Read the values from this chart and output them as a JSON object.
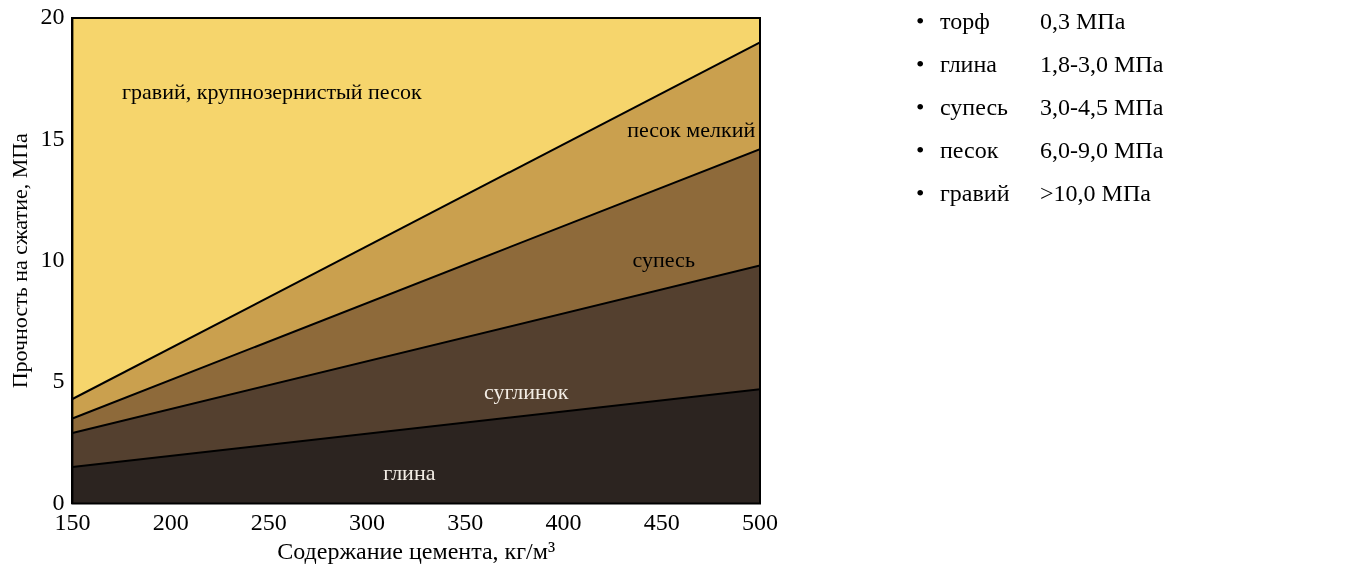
{
  "chart_data": {
    "type": "area",
    "xlabel": "Содержание цемента, кг/м³",
    "ylabel": "Прочность на сжатие, МПа",
    "x": [
      150,
      500
    ],
    "series": [
      {
        "name": "глина",
        "color": "#2c2420",
        "values": [
          1.5,
          4.7
        ]
      },
      {
        "name": "суглинок",
        "color": "#54402f",
        "values": [
          2.9,
          9.8
        ]
      },
      {
        "name": "супесь",
        "color": "#8e6a3a",
        "values": [
          3.5,
          14.6
        ]
      },
      {
        "name": "песок мелкий",
        "color": "#caa04e",
        "values": [
          4.3,
          19.0
        ]
      },
      {
        "name": "гравий, крупнозернистый песок",
        "color": "#f6d56c",
        "values": [
          20,
          20
        ]
      }
    ],
    "xlim": [
      150,
      500
    ],
    "xticks": [
      150,
      200,
      250,
      300,
      350,
      400,
      450,
      500
    ],
    "ylim": [
      0,
      20
    ],
    "yticks": [
      0,
      5,
      10,
      15,
      20
    ],
    "grid": false,
    "legend": false,
    "marker": "none",
    "line_style": "solid",
    "annotations": [
      "• торф 0,3 МПа",
      "• глина 1,8-3,0 МПа",
      "• супесь 3,0-4,5 МПа",
      "• песок 6,0-9,0 МПа",
      "• гравий >10,0 МПа"
    ]
  }
}
